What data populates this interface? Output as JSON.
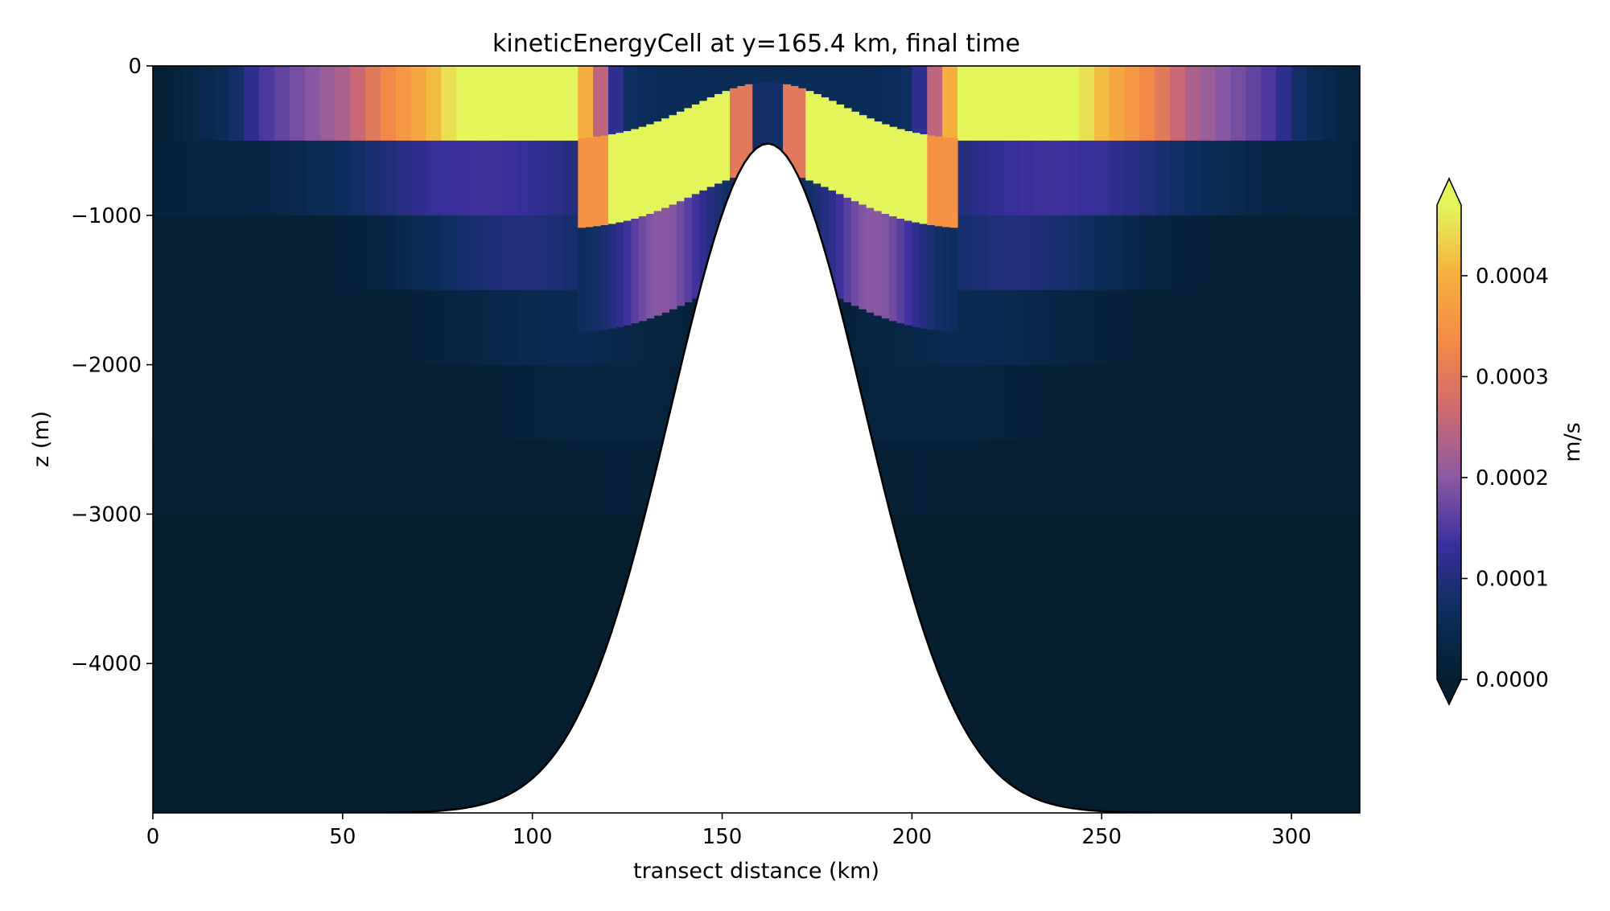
{
  "chart_data": {
    "type": "heatmap",
    "title": "kineticEnergyCell at y=165.4 km, final time",
    "xlabel": "transect distance (km)",
    "ylabel": "z (m)",
    "xlim": [
      0,
      318
    ],
    "ylim": [
      -5000,
      0
    ],
    "x_ticks": [
      0,
      50,
      100,
      150,
      200,
      250,
      300
    ],
    "x_tick_labels": [
      "0",
      "50",
      "100",
      "150",
      "200",
      "250",
      "300"
    ],
    "y_ticks": [
      0,
      -1000,
      -2000,
      -3000,
      -4000
    ],
    "y_tick_labels": [
      "0",
      "−1000",
      "−2000",
      "−3000",
      "−4000"
    ],
    "colorbar": {
      "label": "m/s",
      "vmin": 0.0,
      "vmax": 0.00047,
      "extend": "both",
      "ticks": [
        0.0,
        0.0001,
        0.0002,
        0.0003,
        0.0004
      ],
      "tick_labels": [
        "0.0000",
        "0.0001",
        "0.0002",
        "0.0003",
        "0.0004"
      ],
      "colors": [
        "#041e2f",
        "#0b2f5c",
        "#3a2f9d",
        "#8d5aa3",
        "#cf6a6e",
        "#f58a46",
        "#f5b13e",
        "#e4f55c"
      ]
    },
    "seamount": {
      "center_km": 162,
      "crest_depth_m": -520,
      "bottom_depth_m": -5000,
      "width_km": 36
    },
    "layers_m": [
      0,
      -500,
      -1000,
      -1500,
      -2000,
      -2500,
      -3000
    ],
    "column_width_km": 4,
    "surface_band": {
      "layer": [
        0,
        -500
      ],
      "profile_km": [
        0,
        5,
        10,
        20,
        25,
        30,
        40,
        50,
        55,
        60,
        68,
        75,
        80,
        110,
        115,
        118,
        121,
        126,
        131
      ],
      "profile_value": [
        0.0,
        2e-05,
        3e-05,
        6e-05,
        0.00011,
        0.00015,
        0.00019,
        0.00023,
        0.00027,
        0.00032,
        0.00037,
        0.00042,
        0.00047,
        0.00047,
        0.00038,
        0.00025,
        0.00013,
        7e-05,
        6e-05
      ],
      "hump_top_m": -110,
      "hump_half_width_km": 50
    }
  }
}
